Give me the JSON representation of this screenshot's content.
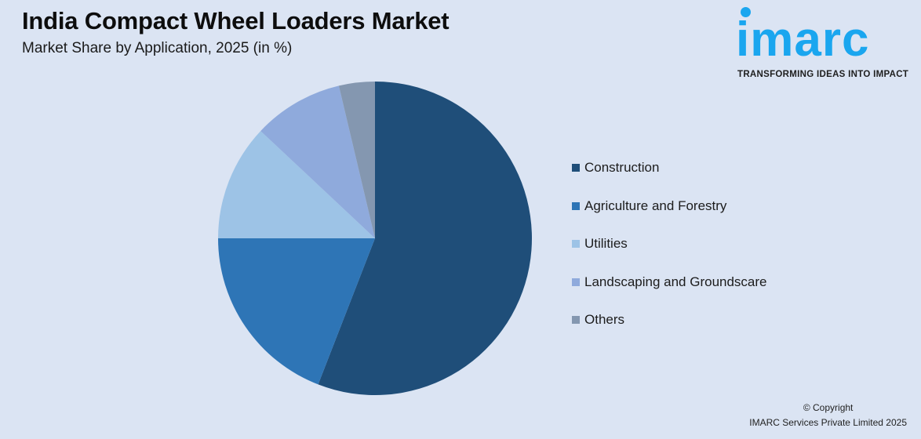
{
  "header": {
    "title": "India Compact Wheel Loaders Market",
    "subtitle": "Market Share by Application, 2025 (in %)"
  },
  "logo": {
    "wordmark": "imarc",
    "tagline": "TRANSFORMING IDEAS INTO IMPACT",
    "color": "#1aa6ef"
  },
  "chart_data": {
    "type": "pie",
    "title": "India Compact Wheel Loaders Market",
    "subtitle": "Market Share by Application, 2025 (in %)",
    "categories": [
      "Construction",
      "Agriculture and Forestry",
      "Utilities",
      "Landscaping and Groundscare",
      "Others"
    ],
    "values": [
      55.9,
      19.1,
      12.0,
      9.3,
      3.7
    ],
    "colors": [
      "#1f4e79",
      "#2e75b6",
      "#9dc3e6",
      "#8faadc",
      "#8497b0"
    ],
    "start_angle": "12 o'clock, clockwise",
    "legend_position": "right",
    "data_labels": "none"
  },
  "legend": {
    "items": [
      {
        "label": "Construction",
        "color": "#1f4e79"
      },
      {
        "label": "Agriculture and Forestry",
        "color": "#2e75b6"
      },
      {
        "label": "Utilities",
        "color": "#9dc3e6"
      },
      {
        "label": "Landscaping and Groundscare",
        "color": "#8faadc"
      },
      {
        "label": "Others",
        "color": "#8497b0"
      }
    ]
  },
  "footer": {
    "copyright_line1": "© Copyright",
    "copyright_line2": "IMARC Services Private Limited 2025"
  }
}
